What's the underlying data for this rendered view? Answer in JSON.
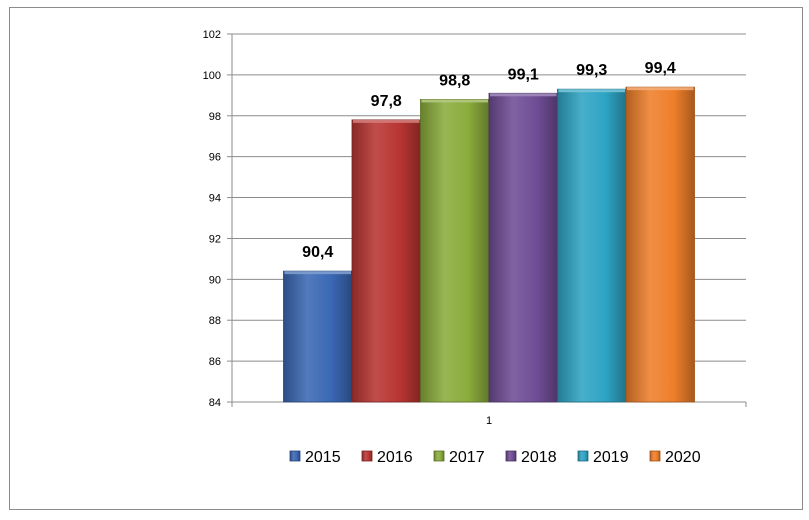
{
  "chart_data": {
    "type": "bar",
    "categories": [
      "1"
    ],
    "series": [
      {
        "name": "2015",
        "values": [
          90.4
        ],
        "label": "90,4",
        "color": "#3a68b4"
      },
      {
        "name": "2016",
        "values": [
          97.8
        ],
        "label": "97,8",
        "color": "#b83532"
      },
      {
        "name": "2017",
        "values": [
          98.8
        ],
        "label": "98,8",
        "color": "#8aac3c"
      },
      {
        "name": "2018",
        "values": [
          99.1
        ],
        "label": "99,1",
        "color": "#6f4d95"
      },
      {
        "name": "2019",
        "values": [
          99.3
        ],
        "label": "99,3",
        "color": "#2ea4c4"
      },
      {
        "name": "2020",
        "values": [
          99.4
        ],
        "label": "99,4",
        "color": "#ee7f2a"
      }
    ],
    "y_ticks": [
      "84",
      "86",
      "88",
      "90",
      "92",
      "94",
      "96",
      "98",
      "100",
      "102"
    ],
    "ylim": [
      84,
      102
    ],
    "title": "",
    "xlabel": "",
    "ylabel": "",
    "grid": true,
    "legend_position": "bottom"
  }
}
